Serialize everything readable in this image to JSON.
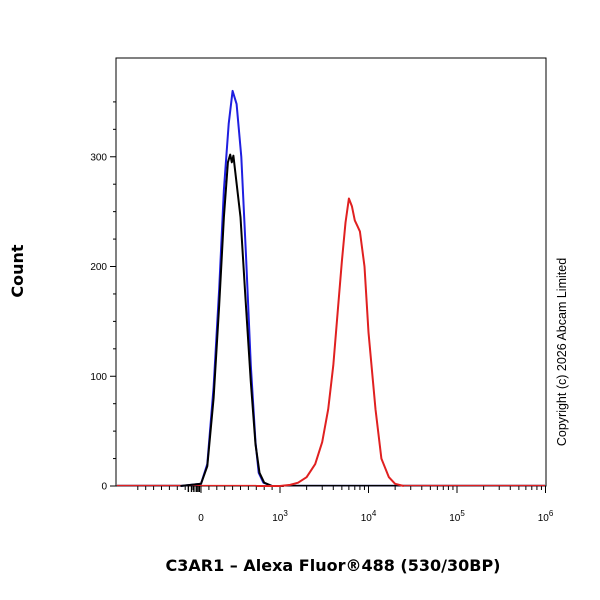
{
  "chart_data": {
    "type": "line",
    "title": "",
    "xlabel": "C3AR1 – Alexa Fluor®488 (530/30BP)",
    "ylabel": "Count",
    "x_scale": "biexponential",
    "xlim": [
      -800,
      1000000
    ],
    "ylim": [
      0,
      390
    ],
    "grid": false,
    "legend": "none",
    "x_tick_labels": [
      {
        "value": 0,
        "base": "0",
        "exp": ""
      },
      {
        "value": 1000,
        "base": "10",
        "exp": "3"
      },
      {
        "value": 10000,
        "base": "10",
        "exp": "4"
      },
      {
        "value": 100000,
        "base": "10",
        "exp": "5"
      },
      {
        "value": 1000000,
        "base": "10",
        "exp": "6"
      }
    ],
    "y_ticks": [
      0,
      100,
      200,
      300
    ],
    "series": [
      {
        "color": "#1f1fe0",
        "x": [
          -260,
          0,
          80,
          160,
          230,
          290,
          350,
          400,
          450,
          510,
          570,
          630,
          690,
          730,
          790,
          900,
          1100
        ],
        "y": [
          0,
          2,
          20,
          90,
          180,
          270,
          330,
          360,
          348,
          300,
          210,
          110,
          40,
          12,
          3,
          0,
          0
        ]
      },
      {
        "color": "#000000",
        "x": [
          -260,
          0,
          80,
          160,
          230,
          290,
          340,
          370,
          390,
          410,
          440,
          500,
          560,
          630,
          690,
          740,
          800,
          900,
          1100
        ],
        "y": [
          0,
          2,
          18,
          80,
          165,
          245,
          295,
          302,
          295,
          301,
          282,
          245,
          175,
          95,
          38,
          12,
          3,
          0,
          0
        ]
      },
      {
        "color": "#e02020",
        "x": [
          700,
          1000,
          1300,
          1600,
          2000,
          2500,
          3000,
          3500,
          4000,
          4500,
          5000,
          5500,
          6000,
          6500,
          7000,
          7500,
          8000,
          9000,
          10000,
          12000,
          14000,
          17000,
          20000,
          25000
        ],
        "y": [
          0,
          0,
          1,
          3,
          8,
          20,
          40,
          70,
          110,
          160,
          205,
          240,
          262,
          255,
          242,
          237,
          232,
          200,
          140,
          70,
          25,
          8,
          2,
          0
        ]
      }
    ],
    "annotations": [
      "Copyright (c) 2026 Abcam Limited"
    ]
  }
}
